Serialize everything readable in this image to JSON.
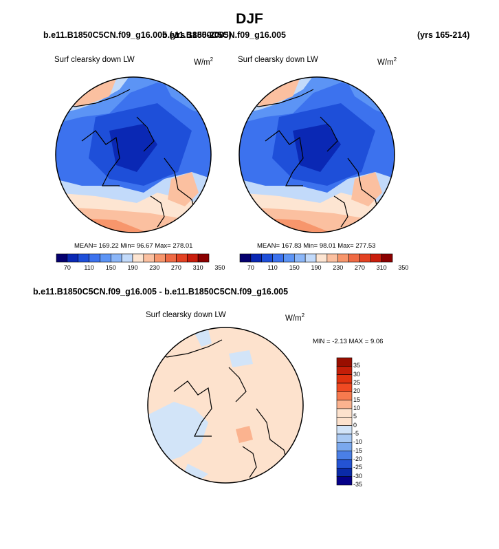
{
  "title": "DJF",
  "panels": [
    {
      "case": "b.e11.B1850C5CN.f09_g16.005 (yrs 1850-2005)",
      "variable": "Surf clearsky down LW",
      "units": "W/m",
      "units_exp": "2",
      "stats": "MEAN= 169.22  Min=  96.67  Max= 278.01",
      "colorbar_ticks": [
        "70",
        "110",
        "150",
        "190",
        "230",
        "270",
        "310",
        "350"
      ]
    },
    {
      "case": "b.e11.B1850C5CN.f09_g16.005",
      "years": "(yrs 165-214)",
      "variable": "Surf clearsky down LW",
      "units": "W/m",
      "units_exp": "2",
      "stats": "MEAN= 167.83  Min=  98.01  Max= 277.53",
      "colorbar_ticks": [
        "70",
        "110",
        "150",
        "190",
        "230",
        "270",
        "310",
        "350"
      ]
    }
  ],
  "diff": {
    "case": "b.e11.B1850C5CN.f09_g16.005 - b.e11.B1850C5CN.f09_g16.005",
    "variable": "Surf clearsky down LW",
    "units": "W/m",
    "units_exp": "2",
    "stats": "MIN =  -2.13 MAX =   9.06",
    "colorbar_ticks": [
      "35",
      "30",
      "25",
      "20",
      "15",
      "10",
      "5",
      "0",
      "-5",
      "-10",
      "-15",
      "-20",
      "-25",
      "-30",
      "-35"
    ]
  },
  "colors": {
    "abs_scale": [
      "#05006e",
      "#0a28b4",
      "#1e4fd9",
      "#3c72ee",
      "#5c94f5",
      "#8bb6f8",
      "#c2dafa",
      "#fde5d2",
      "#fbc0a0",
      "#f7966c",
      "#ef6a44",
      "#e34222",
      "#c91d0c",
      "#8a0000"
    ],
    "diff_scale": [
      "#990e00",
      "#c41e08",
      "#e0320f",
      "#f04a22",
      "#f77a4e",
      "#fbb38f",
      "#fde2cd",
      "#fde2cd",
      "#d2e4f8",
      "#a9c9f3",
      "#7aa8ee",
      "#4a7fe6",
      "#2453d4",
      "#0a2aa8",
      "#050088"
    ]
  }
}
